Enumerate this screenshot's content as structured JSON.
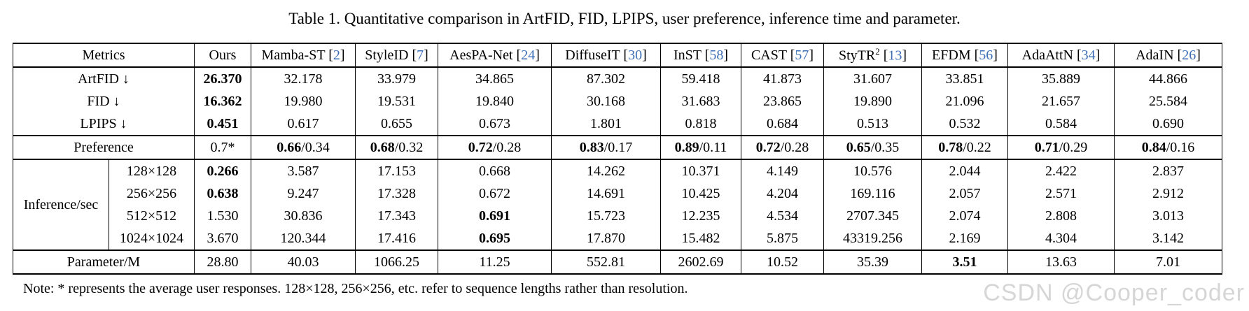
{
  "title": "Table 1. Quantitative comparison in ArtFID, FID, LPIPS, user preference, inference time and parameter.",
  "note": "Note: * represents the average user responses. 128×128, 256×256, etc. refer to sequence lengths rather than resolution.",
  "watermark": "CSDN @Cooper_coder",
  "colors": {
    "citation": "#3D6EB5",
    "rule": "#000000",
    "watermark": "#d6d6d6"
  },
  "table": {
    "cite_brackets": [
      "[",
      "]"
    ],
    "columns": [
      {
        "label": "Metrics"
      },
      {
        "label": "Ours"
      },
      {
        "label": "Mamba-ST",
        "cite": "2"
      },
      {
        "label": "StyleID",
        "cite": "7"
      },
      {
        "label": "AesPA-Net",
        "cite": "24"
      },
      {
        "label": "DiffuseIT",
        "cite": "30"
      },
      {
        "label": "InST",
        "cite": "58"
      },
      {
        "label": "CAST",
        "cite": "57"
      },
      {
        "label": "StyTR",
        "sup": "2",
        "cite": "13"
      },
      {
        "label": "EFDM",
        "cite": "56"
      },
      {
        "label": "AdaAttN",
        "cite": "34"
      },
      {
        "label": "AdaIN",
        "cite": "26"
      }
    ],
    "rows": [
      {
        "label": "ArtFID ↓",
        "cells": [
          {
            "v": "26.370",
            "bold": true
          },
          {
            "v": "32.178"
          },
          {
            "v": "33.979"
          },
          {
            "v": "34.865"
          },
          {
            "v": "87.302"
          },
          {
            "v": "59.418"
          },
          {
            "v": "41.873"
          },
          {
            "v": "31.607"
          },
          {
            "v": "33.851"
          },
          {
            "v": "35.889"
          },
          {
            "v": "44.866"
          }
        ]
      },
      {
        "label": "FID ↓",
        "cells": [
          {
            "v": "16.362",
            "bold": true
          },
          {
            "v": "19.980"
          },
          {
            "v": "19.531"
          },
          {
            "v": "19.840"
          },
          {
            "v": "30.168"
          },
          {
            "v": "31.683"
          },
          {
            "v": "23.865"
          },
          {
            "v": "19.890"
          },
          {
            "v": "21.096"
          },
          {
            "v": "21.657"
          },
          {
            "v": "25.584"
          }
        ]
      },
      {
        "label": "LPIPS ↓",
        "cells": [
          {
            "v": "0.451",
            "bold": true
          },
          {
            "v": "0.617"
          },
          {
            "v": "0.655"
          },
          {
            "v": "0.673"
          },
          {
            "v": "1.801"
          },
          {
            "v": "0.818"
          },
          {
            "v": "0.684"
          },
          {
            "v": "0.513"
          },
          {
            "v": "0.532"
          },
          {
            "v": "0.584"
          },
          {
            "v": "0.690"
          }
        ]
      },
      {
        "label": "Preference",
        "rule": true,
        "cells": [
          {
            "v": "0.7*"
          },
          {
            "v": "0.66",
            "bold": true,
            "suffix": "/0.34"
          },
          {
            "v": "0.68",
            "bold": true,
            "suffix": "/0.32"
          },
          {
            "v": "0.72",
            "bold": true,
            "suffix": "/0.28"
          },
          {
            "v": "0.83",
            "bold": true,
            "suffix": "/0.17"
          },
          {
            "v": "0.89",
            "bold": true,
            "suffix": "/0.11"
          },
          {
            "v": "0.72",
            "bold": true,
            "suffix": "/0.28"
          },
          {
            "v": "0.65",
            "bold": true,
            "suffix": "/0.35"
          },
          {
            "v": "0.78",
            "bold": true,
            "suffix": "/0.22"
          },
          {
            "v": "0.71",
            "bold": true,
            "suffix": "/0.29"
          },
          {
            "v": "0.84",
            "bold": true,
            "suffix": "/0.16"
          }
        ]
      },
      {
        "group": "Inference/sec",
        "rowspan": 4,
        "sublabel": "128×128",
        "rule": true,
        "cells": [
          {
            "v": "0.266",
            "bold": true
          },
          {
            "v": "3.587"
          },
          {
            "v": "17.153"
          },
          {
            "v": "0.668"
          },
          {
            "v": "14.262"
          },
          {
            "v": "10.371"
          },
          {
            "v": "4.149"
          },
          {
            "v": "10.576"
          },
          {
            "v": "2.044"
          },
          {
            "v": "2.422"
          },
          {
            "v": "2.837"
          }
        ]
      },
      {
        "sublabel": "256×256",
        "cells": [
          {
            "v": "0.638",
            "bold": true
          },
          {
            "v": "9.247"
          },
          {
            "v": "17.328"
          },
          {
            "v": "0.672"
          },
          {
            "v": "14.691"
          },
          {
            "v": "10.425"
          },
          {
            "v": "4.204"
          },
          {
            "v": "169.116"
          },
          {
            "v": "2.057"
          },
          {
            "v": "2.571"
          },
          {
            "v": "2.912"
          }
        ]
      },
      {
        "sublabel": "512×512",
        "cells": [
          {
            "v": "1.530"
          },
          {
            "v": "30.836"
          },
          {
            "v": "17.343"
          },
          {
            "v": "0.691",
            "bold": true
          },
          {
            "v": "15.723"
          },
          {
            "v": "12.235"
          },
          {
            "v": "4.534"
          },
          {
            "v": "2707.345"
          },
          {
            "v": "2.074"
          },
          {
            "v": "2.808"
          },
          {
            "v": "3.013"
          }
        ]
      },
      {
        "sublabel": "1024×1024",
        "cells": [
          {
            "v": "3.670"
          },
          {
            "v": "120.344"
          },
          {
            "v": "17.416"
          },
          {
            "v": "0.695",
            "bold": true
          },
          {
            "v": "17.870"
          },
          {
            "v": "15.482"
          },
          {
            "v": "5.875"
          },
          {
            "v": "43319.256"
          },
          {
            "v": "2.169"
          },
          {
            "v": "4.304"
          },
          {
            "v": "3.142"
          }
        ]
      },
      {
        "label": "Parameter/M",
        "rule": true,
        "cells": [
          {
            "v": "28.80"
          },
          {
            "v": "40.03"
          },
          {
            "v": "1066.25"
          },
          {
            "v": "11.25"
          },
          {
            "v": "552.81"
          },
          {
            "v": "2602.69"
          },
          {
            "v": "10.52"
          },
          {
            "v": "35.39"
          },
          {
            "v": "3.51",
            "bold": true
          },
          {
            "v": "13.63"
          },
          {
            "v": "7.01"
          }
        ]
      }
    ]
  }
}
